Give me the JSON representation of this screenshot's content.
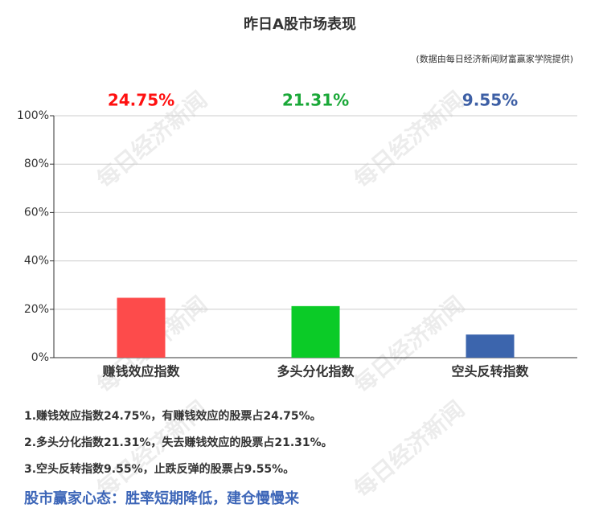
{
  "chart_data": {
    "type": "bar",
    "title": "昨日A股市场表现",
    "subtitle": "(数据由每日经济新闻财富赢家学院提供)",
    "categories": [
      "赚钱效应指数",
      "多头分化指数",
      "空头反转指数"
    ],
    "values": [
      24.75,
      21.31,
      9.55
    ],
    "value_labels": [
      "24.75%",
      "21.31%",
      "9.55%"
    ],
    "colors": [
      "#fd4b4b",
      "#0bcb27",
      "#3c65ad"
    ],
    "label_colors": [
      "#ff1010",
      "#1aa838",
      "#3d5fa5"
    ],
    "ylim": [
      0,
      100
    ],
    "yticks": [
      {
        "value": 0,
        "label": "0%"
      },
      {
        "value": 20,
        "label": "20%"
      },
      {
        "value": 40,
        "label": "40%"
      },
      {
        "value": 60,
        "label": "60%"
      },
      {
        "value": 80,
        "label": "80%"
      },
      {
        "value": 100,
        "label": "100%"
      }
    ],
    "grid": true
  },
  "watermark": "每日经济新闻",
  "notes": [
    "1.赚钱效应指数24.75%，有赚钱效应的股票占24.75%。",
    "2.多头分化指数21.31%，失去赚钱效应的股票占21.31%。",
    "3.空头反转指数9.55%，止跌反弹的股票占9.55%。"
  ],
  "conclusion": "股市赢家心态：胜率短期降低，建仓慢慢来"
}
